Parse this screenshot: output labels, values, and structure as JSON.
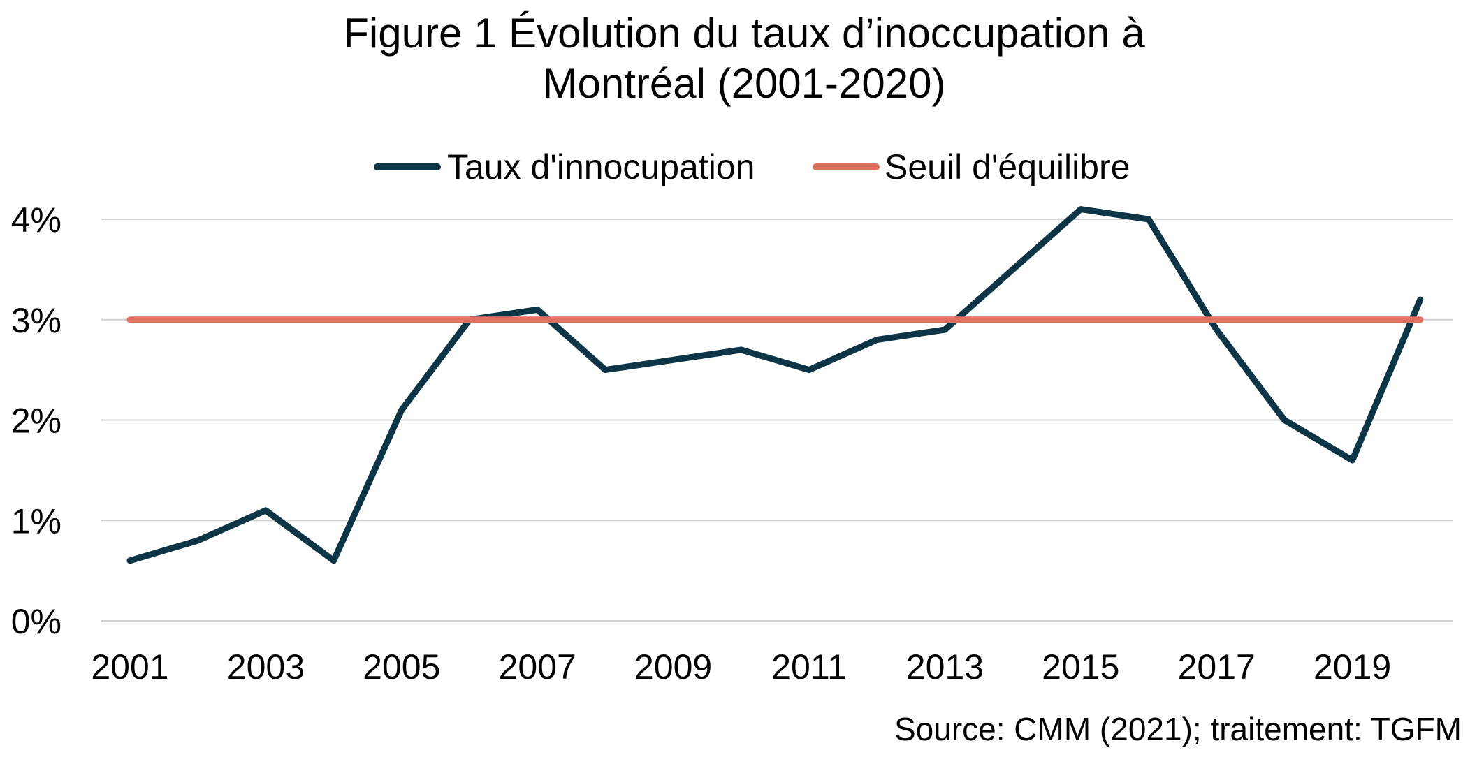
{
  "chart_data": {
    "type": "line",
    "title_lines": [
      "Figure 1 Évolution du taux d’inoccupation à",
      "Montréal (2001-2020)"
    ],
    "xlabel": "",
    "ylabel": "",
    "x": [
      2001,
      2002,
      2003,
      2004,
      2005,
      2006,
      2007,
      2008,
      2009,
      2010,
      2011,
      2012,
      2013,
      2014,
      2015,
      2016,
      2017,
      2018,
      2019,
      2020
    ],
    "x_tick_labels": [
      "2001",
      "2003",
      "2005",
      "2007",
      "2009",
      "2011",
      "2013",
      "2015",
      "2017",
      "2019"
    ],
    "ylim": [
      0,
      4
    ],
    "y_tick_labels": [
      "0%",
      "1%",
      "2%",
      "3%",
      "4%"
    ],
    "grid": true,
    "legend_position": "top",
    "series": [
      {
        "name": "Taux d'innocupation",
        "color": "#0d3545",
        "values": [
          0.6,
          0.8,
          1.1,
          0.6,
          2.1,
          3.0,
          3.1,
          2.5,
          2.6,
          2.7,
          2.5,
          2.8,
          2.9,
          3.5,
          4.1,
          4.0,
          2.9,
          2.0,
          1.6,
          3.2
        ]
      },
      {
        "name": "Seuil d'équilibre",
        "color": "#e07060",
        "values": [
          3,
          3,
          3,
          3,
          3,
          3,
          3,
          3,
          3,
          3,
          3,
          3,
          3,
          3,
          3,
          3,
          3,
          3,
          3,
          3
        ]
      }
    ],
    "source": "Source: CMM (2021); traitement: TGFM"
  }
}
